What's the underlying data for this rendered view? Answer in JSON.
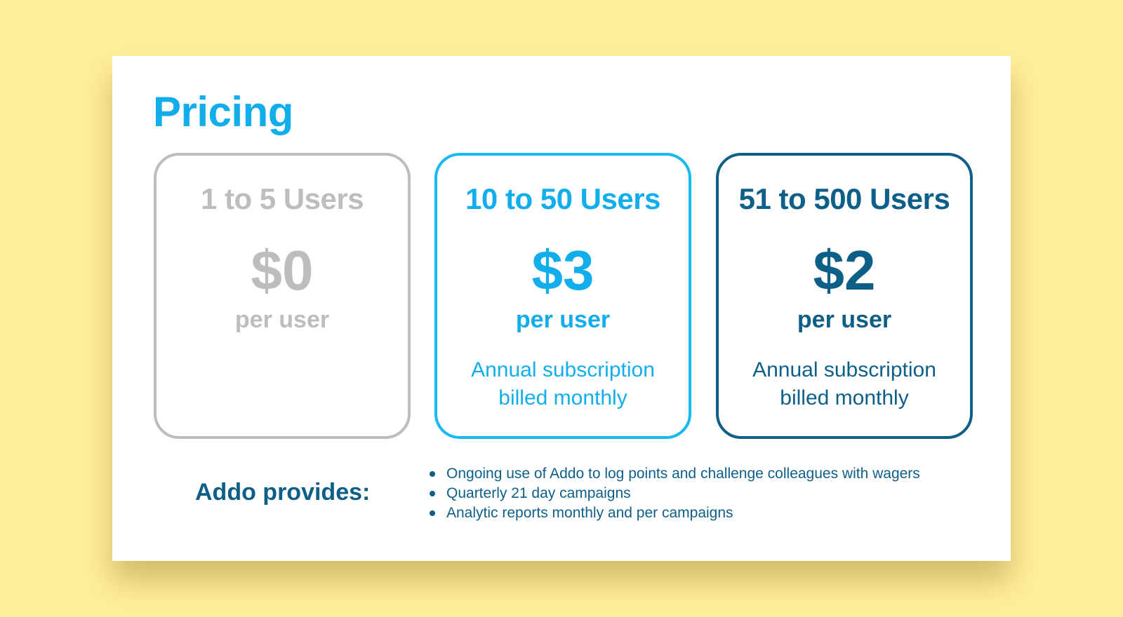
{
  "slide": {
    "title": "Pricing",
    "plans": [
      {
        "tier": "1 to 5 Users",
        "price": "$0",
        "unit": "per user",
        "note_line1": "",
        "note_line2": "",
        "color": "#BDBDBD"
      },
      {
        "tier": "10 to 50 Users",
        "price": "$3",
        "unit": "per user",
        "note_line1": "Annual subscription",
        "note_line2": "billed monthly",
        "color": "#12AEEC"
      },
      {
        "tier": "51 to 500 Users",
        "price": "$2",
        "unit": "per user",
        "note_line1": "Annual subscription",
        "note_line2": "billed monthly",
        "color": "#0E5F88"
      }
    ],
    "provides_label": "Addo provides:",
    "features": [
      "Ongoing use of Addo to log points and challenge colleagues with wagers",
      "Quarterly 21 day campaigns",
      "Analytic reports monthly and per campaigns"
    ]
  },
  "colors": {
    "background": "#FFEE9A",
    "accent_light": "#12AEEC",
    "accent_dark": "#0E5F88",
    "muted": "#BDBDBD"
  }
}
